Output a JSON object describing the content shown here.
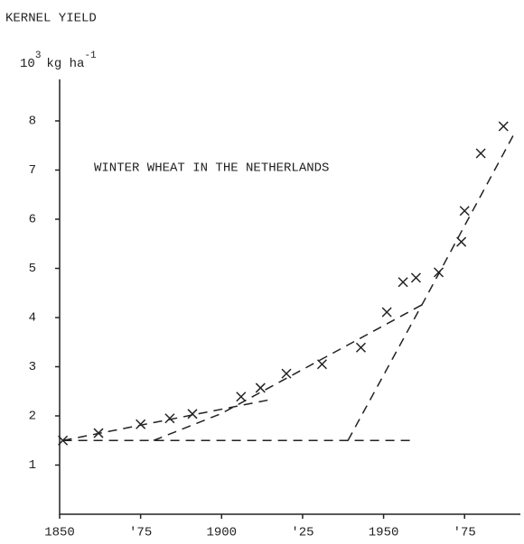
{
  "chart_data": {
    "type": "scatter",
    "y_label": "KERNEL YIELD",
    "y_unit": {
      "base": "10",
      "exp": "3",
      "unit": "kg ha",
      "unit_exp": "-1"
    },
    "annotation": "WINTER WHEAT IN THE NETHERLANDS",
    "color": "#222222",
    "xlim": [
      1850,
      1990
    ],
    "ylim": [
      0,
      8.8
    ],
    "xticks": [
      1850,
      {
        "value": 1875,
        "label": "'75"
      },
      1900,
      {
        "value": 1925,
        "label": "'25"
      },
      1950,
      {
        "value": 1975,
        "label": "'75"
      }
    ],
    "yticks": [
      1,
      2,
      3,
      4,
      5,
      6,
      7,
      8
    ],
    "x": [
      1851,
      1862,
      1875,
      1884,
      1891,
      1906,
      1912,
      1920,
      1931,
      1943,
      1951,
      1956,
      1960,
      1967,
      1974,
      1975,
      1980,
      1987
    ],
    "values": [
      1.5,
      1.65,
      1.83,
      1.95,
      2.04,
      2.39,
      2.57,
      2.86,
      3.05,
      3.39,
      4.11,
      4.72,
      4.81,
      4.92,
      5.54,
      6.17,
      7.34,
      7.89
    ],
    "trend_lines": [
      {
        "x": [
          1851,
          1960
        ],
        "values": [
          1.5,
          1.5
        ]
      },
      {
        "x": [
          1851,
          1915
        ],
        "values": [
          1.5,
          2.33
        ]
      },
      {
        "x": [
          1879,
          1900,
          1963
        ],
        "values": [
          1.5,
          2.05,
          4.3
        ]
      },
      {
        "x": [
          1939,
          1963,
          1990
        ],
        "values": [
          1.5,
          4.4,
          7.7
        ]
      }
    ]
  }
}
